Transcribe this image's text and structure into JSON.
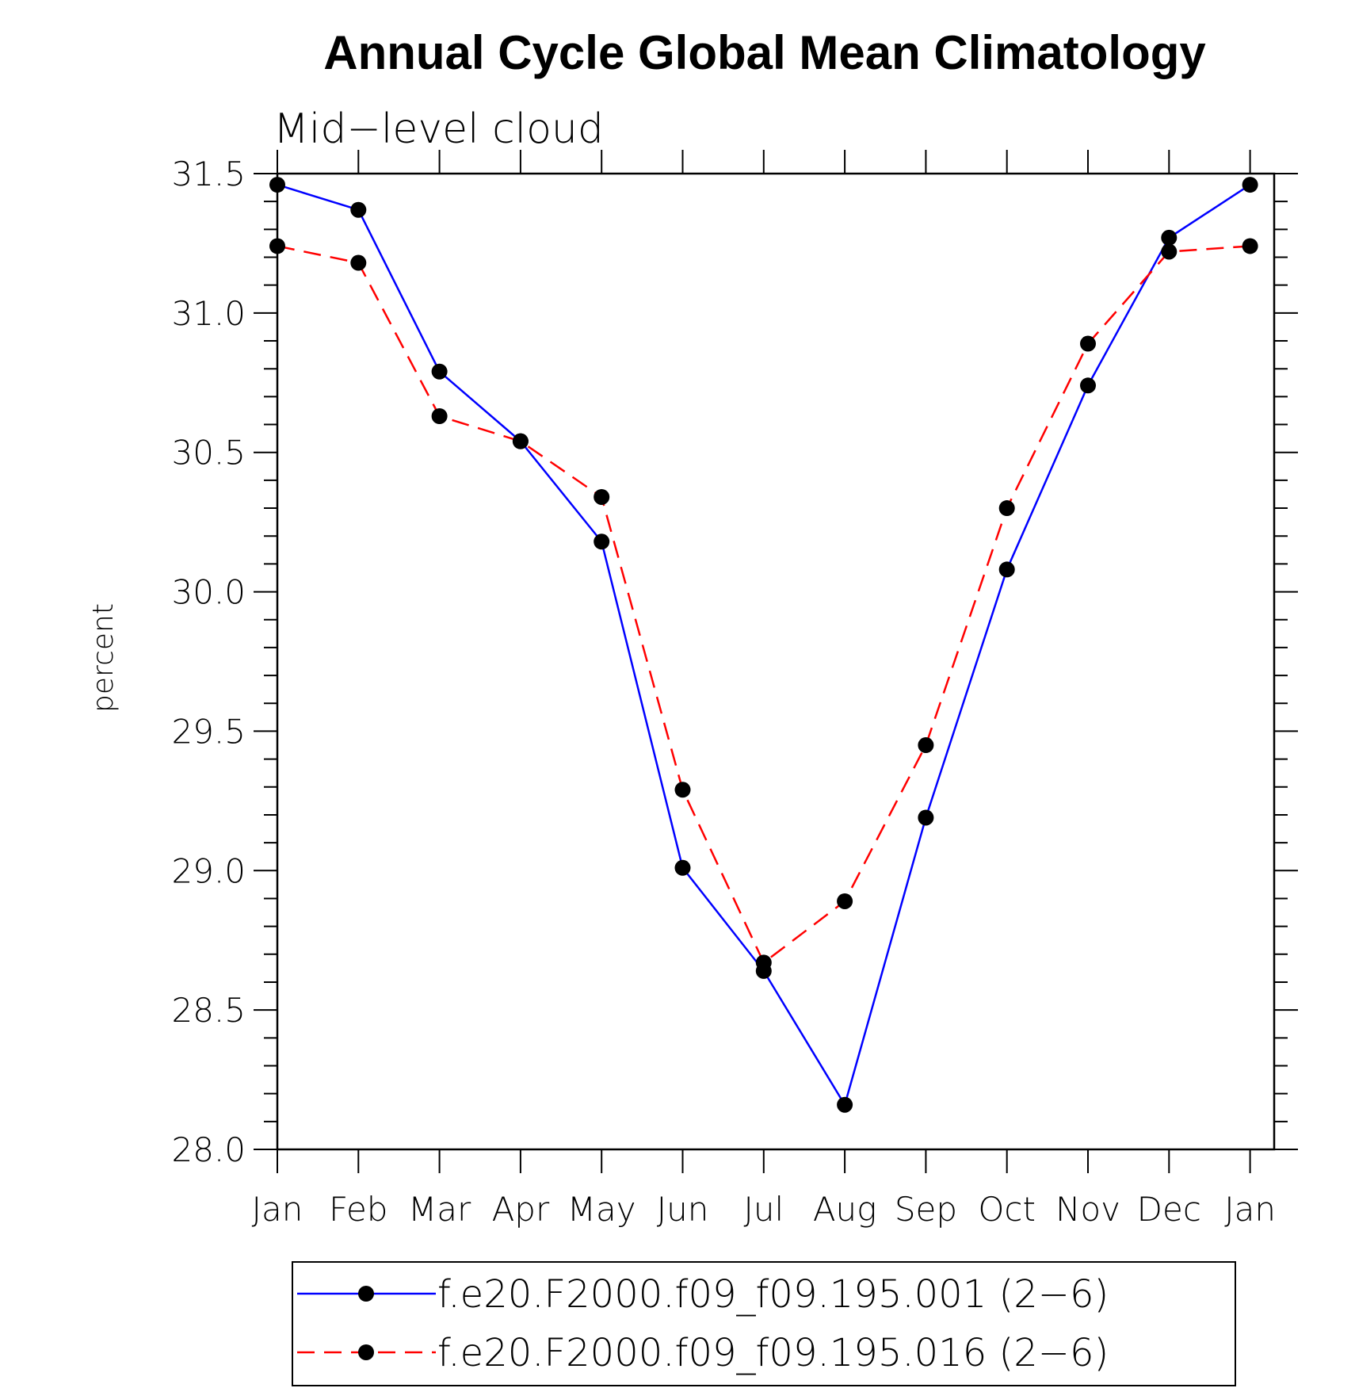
{
  "chart_data": {
    "type": "line",
    "title": "Annual Cycle Global Mean Climatology",
    "subtitle": "Mid−level cloud",
    "xlabel": "",
    "ylabel": "percent",
    "categories": [
      "Jan",
      "Feb",
      "Mar",
      "Apr",
      "May",
      "Jun",
      "Jul",
      "Aug",
      "Sep",
      "Oct",
      "Nov",
      "Dec",
      "Jan"
    ],
    "ylim": [
      28.0,
      31.5
    ],
    "yticks": [
      "28.0",
      "28.5",
      "29.0",
      "29.5",
      "30.0",
      "30.5",
      "31.0",
      "31.5"
    ],
    "legend_position": "bottom",
    "series": [
      {
        "name": "f.e20.F2000.f09_f09.195.001 (2−6)",
        "color": "#0000ff",
        "line_style": "solid",
        "marker": "filled-circle",
        "values": [
          31.46,
          31.37,
          30.79,
          30.54,
          30.18,
          29.01,
          28.64,
          28.16,
          29.19,
          30.08,
          30.74,
          31.27,
          31.46
        ]
      },
      {
        "name": "f.e20.F2000.f09_f09.195.016 (2−6)",
        "color": "#ff0000",
        "line_style": "dashed",
        "marker": "filled-circle",
        "values": [
          31.24,
          31.18,
          30.63,
          30.54,
          30.34,
          29.29,
          28.67,
          28.89,
          29.45,
          30.3,
          30.89,
          31.22,
          31.24
        ]
      }
    ]
  }
}
